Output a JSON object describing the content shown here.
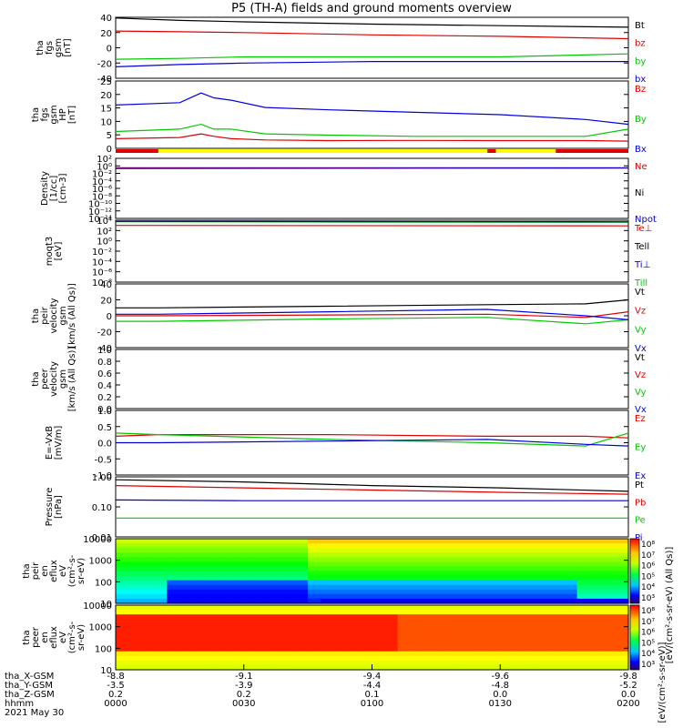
{
  "chart_data": {
    "type": "line",
    "title": "P5 (TH-A) fields and ground moments overview",
    "date_label": "2021 May 30",
    "time_axis": {
      "start": "0000",
      "end": "0200",
      "ticks": [
        "0000",
        "0030",
        "0100",
        "0130",
        "0200"
      ],
      "rows": [
        {
          "name": "tha_X-GSM",
          "values": [
            "-8.8",
            "-9.1",
            "-9.4",
            "-9.6",
            "-9.8"
          ]
        },
        {
          "name": "tha_Y-GSM",
          "values": [
            "-3.5",
            "-3.9",
            "-4.4",
            "-4.8",
            "-5.2"
          ]
        },
        {
          "name": "tha_Z-GSM",
          "values": [
            "0.2",
            "0.2",
            "0.1",
            "0.0",
            "0.0"
          ]
        },
        {
          "name": "hhmm",
          "values": [
            "0000",
            "0030",
            "0100",
            "0130",
            "0200"
          ]
        }
      ]
    },
    "panels": [
      {
        "id": "fgs",
        "ylabel": [
          "tha",
          "fgs",
          "gsm",
          "[nT]"
        ],
        "ylim": [
          -40,
          40
        ],
        "ticks": [
          "40",
          "20",
          "0",
          "-20",
          "-40"
        ],
        "legend": [
          {
            "label": "Bt",
            "color": "#000000"
          },
          {
            "label": "bz",
            "color": "#e00000"
          },
          {
            "label": "by",
            "color": "#00c800"
          },
          {
            "label": "bx",
            "color": "#0000e0"
          }
        ],
        "series": [
          {
            "name": "Bt",
            "color": "#000000",
            "x": [
              0,
              15,
              30,
              60,
              90,
              120
            ],
            "y": [
              39,
              36,
              34,
              31,
              29,
              27
            ]
          },
          {
            "name": "bz",
            "color": "#e00000",
            "x": [
              0,
              15,
              30,
              60,
              90,
              120
            ],
            "y": [
              22,
              21,
              20,
              17,
              15,
              12
            ]
          },
          {
            "name": "by",
            "color": "#00c800",
            "x": [
              0,
              15,
              30,
              60,
              90,
              120
            ],
            "y": [
              -15,
              -14,
              -12,
              -12,
              -12,
              -8
            ]
          },
          {
            "name": "bx",
            "color": "#0000e0",
            "x": [
              0,
              15,
              30,
              60,
              90,
              120
            ],
            "y": [
              -25,
              -22,
              -20,
              -18,
              -18,
              -18
            ]
          }
        ]
      },
      {
        "id": "fgs_hp",
        "ylabel": [
          "tha",
          "fgs",
          "gsm",
          "HP",
          "[nT]"
        ],
        "ylim": [
          -3,
          25
        ],
        "ticks": [
          "25",
          "20",
          "15",
          "10",
          "5",
          "0"
        ],
        "legend": [
          {
            "label": "Bz",
            "color": "#e00000"
          },
          {
            "label": "By",
            "color": "#00c800"
          },
          {
            "label": "Bx",
            "color": "#0000e0"
          }
        ],
        "series": [
          {
            "name": "Bx",
            "color": "#0000e0",
            "x": [
              0,
              15,
              20,
              23,
              27,
              35,
              50,
              70,
              90,
              110,
              120
            ],
            "y": [
              15,
              16,
              20,
              18,
              17,
              14,
              13,
              12,
              11,
              9,
              7
            ]
          },
          {
            "name": "By",
            "color": "#00c800",
            "x": [
              0,
              15,
              20,
              23,
              27,
              35,
              50,
              70,
              90,
              110,
              120
            ],
            "y": [
              4,
              5,
              7,
              5,
              5,
              3,
              2.5,
              2,
              2,
              2,
              5
            ]
          },
          {
            "name": "Bz",
            "color": "#e00000",
            "x": [
              0,
              15,
              20,
              23,
              27,
              35,
              50,
              70,
              90,
              110,
              120
            ],
            "y": [
              1,
              1.5,
              3,
              2,
              1,
              0.5,
              0.2,
              0.3,
              0.2,
              0.2,
              0
            ]
          }
        ],
        "bar": [
          {
            "from": 0,
            "to": 10,
            "color": "#e00000"
          },
          {
            "from": 10,
            "to": 87,
            "color": "#ffff00"
          },
          {
            "from": 87,
            "to": 89,
            "color": "#e00000"
          },
          {
            "from": 89,
            "to": 103,
            "color": "#ffff00"
          },
          {
            "from": 103,
            "to": 120,
            "color": "#e00000"
          }
        ]
      },
      {
        "id": "density",
        "ylabel": [
          "Density",
          "[1/cc]",
          "[cm-3]"
        ],
        "scale": "log",
        "ylim": [
          1e-14,
          100.0
        ],
        "ticks": [
          "10²",
          "10⁰",
          "10⁻²",
          "10⁻⁴",
          "10⁻⁶",
          "10⁻⁸",
          "10⁻¹⁰",
          "10⁻¹²",
          "10⁻¹⁴"
        ],
        "legend": [
          {
            "label": "Ne",
            "color": "#e00000"
          },
          {
            "label": "Ni",
            "color": "#000000"
          },
          {
            "label": "Npot",
            "color": "#0000e0"
          }
        ],
        "series": [
          {
            "name": "Ne",
            "color": "#e00000",
            "x": [
              0,
              120
            ],
            "y": [
              0.3,
              0.3
            ]
          },
          {
            "name": "Npot",
            "color": "#0000e0",
            "x": [
              0,
              120
            ],
            "y": [
              0.2,
              0.25
            ]
          }
        ]
      },
      {
        "id": "temp",
        "ylabel": [
          "moqt3",
          "[eV]"
        ],
        "scale": "log",
        "ylim": [
          1e-08,
          10000.0
        ],
        "ticks": [
          "10⁴",
          "10²",
          "10⁰",
          "10⁻²",
          "10⁻⁴",
          "10⁻⁶",
          "10⁻⁸"
        ],
        "legend": [
          {
            "label": "Te⊥",
            "color": "#e00000"
          },
          {
            "label": "Tell",
            "color": "#000000"
          },
          {
            "label": "Ti⊥",
            "color": "#0000e0"
          },
          {
            "label": "Till",
            "color": "#00c800"
          }
        ],
        "series": [
          {
            "name": "Te⊥",
            "color": "#e00000",
            "x": [
              0,
              120
            ],
            "y": [
              1000,
              800
            ]
          },
          {
            "name": "Till",
            "color": "#00c800",
            "x": [
              0,
              120
            ],
            "y": [
              5000,
              4000
            ]
          },
          {
            "name": "Ti⊥",
            "color": "#0000e0",
            "x": [
              0,
              120
            ],
            "y": [
              6000,
              5000
            ]
          }
        ]
      },
      {
        "id": "peir_vel",
        "ylabel": [
          "tha",
          "peir",
          "velocity",
          "gsm",
          "[km/s (All Qs)]"
        ],
        "ylim": [
          -40,
          40
        ],
        "ticks": [
          "40",
          "20",
          "0",
          "-20",
          "-40"
        ],
        "legend": [
          {
            "label": "Vt",
            "color": "#000000"
          },
          {
            "label": "Vz",
            "color": "#e00000"
          },
          {
            "label": "Vy",
            "color": "#00c800"
          },
          {
            "label": "Vx",
            "color": "#0000e0"
          }
        ],
        "series": [
          {
            "name": "Vt",
            "color": "#000000",
            "x": [
              0,
              10,
              50,
              87,
              110,
              120
            ],
            "y": [
              10,
              10,
              12,
              14,
              15,
              20
            ]
          },
          {
            "name": "Vz",
            "color": "#e00000",
            "x": [
              0,
              10,
              50,
              87,
              110,
              120
            ],
            "y": [
              0,
              0,
              1,
              2,
              -2,
              5
            ]
          },
          {
            "name": "Vy",
            "color": "#00c800",
            "x": [
              0,
              10,
              50,
              87,
              110,
              120
            ],
            "y": [
              -7,
              -7,
              -4,
              -2,
              -10,
              -5
            ]
          },
          {
            "name": "Vx",
            "color": "#0000e0",
            "x": [
              0,
              10,
              50,
              87,
              110,
              120
            ],
            "y": [
              2,
              2,
              5,
              8,
              0,
              -5
            ]
          }
        ]
      },
      {
        "id": "peer_vel",
        "ylabel": [
          "tha",
          "peer",
          "velocity",
          "gsm",
          "[km/s (All Qs)]"
        ],
        "ylim": [
          0,
          1
        ],
        "ticks": [
          "1.0",
          "0.8",
          "0.6",
          "0.4",
          "0.2",
          "0.0"
        ],
        "legend": [
          {
            "label": "Vt",
            "color": "#000000"
          },
          {
            "label": "Vz",
            "color": "#e00000"
          },
          {
            "label": "Vy",
            "color": "#00c800"
          },
          {
            "label": "Vx",
            "color": "#0000e0"
          }
        ],
        "series": []
      },
      {
        "id": "efield",
        "ylabel": [
          "E=-VxB",
          "[mV/m]"
        ],
        "ylim": [
          -1,
          1
        ],
        "ticks": [
          "1.0",
          "0.5",
          "0.0",
          "-0.5",
          "-1.0"
        ],
        "legend": [
          {
            "label": "Ez",
            "color": "#e00000"
          },
          {
            "label": "Ey",
            "color": "#00c800"
          },
          {
            "label": "Ex",
            "color": "#0000e0"
          }
        ],
        "series": [
          {
            "name": "Ez",
            "color": "#e00000",
            "x": [
              0,
              10,
              50,
              87,
              110,
              120
            ],
            "y": [
              0.2,
              0.25,
              0.25,
              0.2,
              0.2,
              0.15
            ]
          },
          {
            "name": "Ey",
            "color": "#00c800",
            "x": [
              0,
              10,
              50,
              87,
              110,
              120
            ],
            "y": [
              0.3,
              0.25,
              0.1,
              0.0,
              -0.1,
              0.3
            ]
          },
          {
            "name": "Ex",
            "color": "#0000e0",
            "x": [
              0,
              10,
              50,
              87,
              110,
              120
            ],
            "y": [
              0.0,
              0.0,
              0.05,
              0.1,
              -0.05,
              -0.1
            ]
          }
        ]
      },
      {
        "id": "pressure",
        "ylabel": [
          "Pressure",
          "[nPa]"
        ],
        "scale": "log",
        "ylim": [
          0.01,
          1.2
        ],
        "ticks": [
          "1.00",
          "0.10",
          "0.01"
        ],
        "legend": [
          {
            "label": "Pt",
            "color": "#000000"
          },
          {
            "label": "Pb",
            "color": "#e00000"
          },
          {
            "label": "Pe",
            "color": "#00c800"
          },
          {
            "label": "Pi",
            "color": "#0000e0"
          }
        ],
        "series": [
          {
            "name": "Pt",
            "color": "#000000",
            "x": [
              0,
              30,
              60,
              90,
              120
            ],
            "y": [
              0.95,
              0.8,
              0.6,
              0.5,
              0.38
            ]
          },
          {
            "name": "Pb",
            "color": "#e00000",
            "x": [
              0,
              30,
              60,
              90,
              120
            ],
            "y": [
              0.6,
              0.5,
              0.42,
              0.35,
              0.3
            ]
          },
          {
            "name": "Pi",
            "color": "#0000e0",
            "x": [
              0,
              30,
              60,
              90,
              120
            ],
            "y": [
              0.19,
              0.18,
              0.18,
              0.18,
              0.18
            ]
          },
          {
            "name": "Pe",
            "color": "#00c800",
            "x": [
              0,
              30,
              60,
              90,
              120
            ],
            "y": [
              0.045,
              0.045,
              0.045,
              0.045,
              0.045
            ]
          }
        ]
      },
      {
        "id": "peir_en",
        "type": "heatmap",
        "ylabel": [
          "tha",
          "peir",
          "en",
          "eflux",
          "eV",
          "(cm²-s-",
          "sr-eV)"
        ],
        "ticks": [
          "10000",
          "1000",
          "100",
          "10"
        ]
      },
      {
        "id": "peer_en",
        "type": "heatmap",
        "ylabel": [
          "tha",
          "peer",
          "en",
          "eflux",
          "eV",
          "(cm²-s-",
          "sr-eV)"
        ],
        "ticks": [
          "10000",
          "1000",
          "100",
          "10"
        ]
      }
    ],
    "colorbars": [
      {
        "label": "[eV/(cm²-s-sr-eV) (All Qs)]",
        "ticks": [
          "10⁸",
          "10⁷",
          "10⁶",
          "10⁵",
          "10⁴",
          "10³"
        ]
      },
      {
        "label": "[eV/(cm²-s-sr-eV)]",
        "ticks": [
          "10⁸",
          "10⁷",
          "10⁶",
          "10⁵",
          "10⁴",
          "10³"
        ]
      }
    ]
  }
}
